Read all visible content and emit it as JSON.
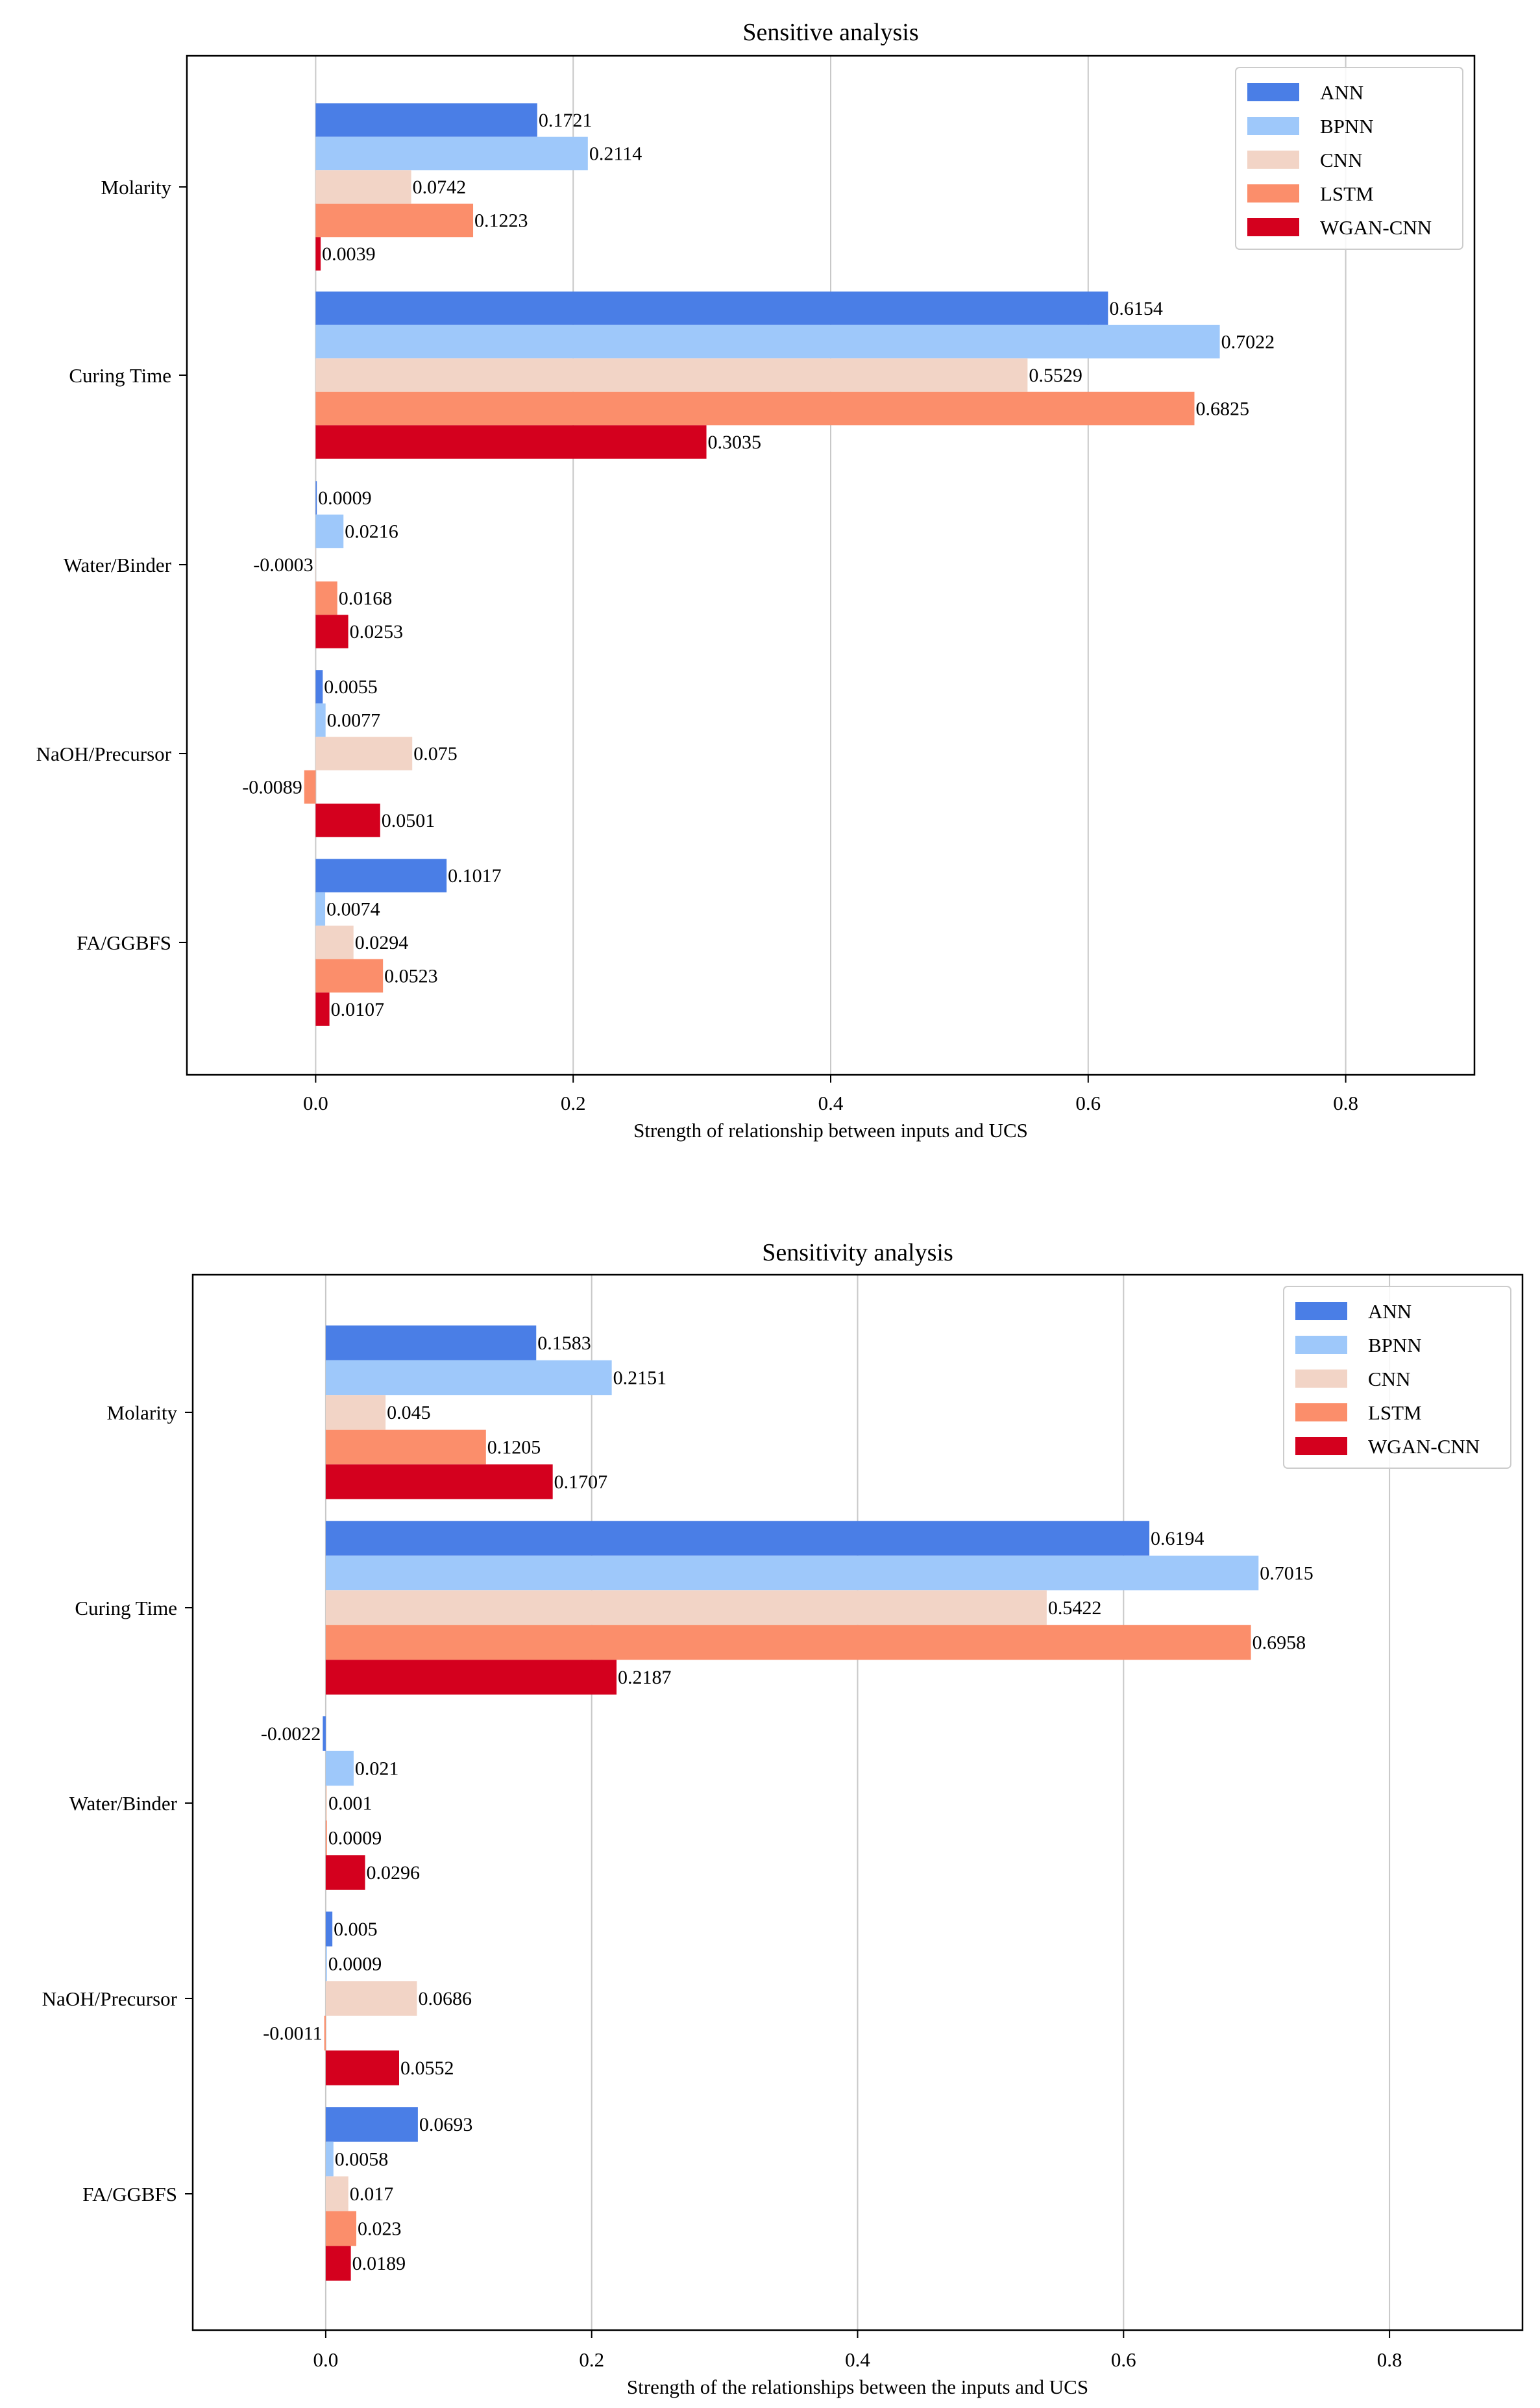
{
  "colors": {
    "ANN": "#4a7ee6",
    "BPNN": "#9ec8fa",
    "CNN": "#f2d4c6",
    "LSTM": "#fb8e6b",
    "WGAN-CNN": "#d4001e",
    "grid": "#c8c8c8",
    "axis": "#000000"
  },
  "chart_data": [
    {
      "type": "bar",
      "orientation": "horizontal",
      "title": "Sensitive analysis",
      "xlabel": "Strength of relationship between inputs and UCS",
      "ylabel": "",
      "xlim": [
        -0.1,
        0.9
      ],
      "xticks": [
        0.0,
        0.2,
        0.4,
        0.6,
        0.8
      ],
      "grid": "vertical",
      "legend_position": "top-right",
      "categories": [
        "Molarity",
        "Curing Time",
        "Water/Binder",
        "NaOH/Precursor",
        "FA/GGBFS"
      ],
      "series": [
        {
          "name": "ANN",
          "values": [
            0.1721,
            0.6154,
            0.0009,
            0.0055,
            0.1017
          ]
        },
        {
          "name": "BPNN",
          "values": [
            0.2114,
            0.7022,
            0.0216,
            0.0077,
            0.0074
          ]
        },
        {
          "name": "CNN",
          "values": [
            0.0742,
            0.5529,
            -0.0003,
            0.075,
            0.0294
          ]
        },
        {
          "name": "LSTM",
          "values": [
            0.1223,
            0.6825,
            0.0168,
            -0.0089,
            0.0523
          ]
        },
        {
          "name": "WGAN-CNN",
          "values": [
            0.0039,
            0.3035,
            0.0253,
            0.0501,
            0.0107
          ]
        }
      ],
      "labels": [
        [
          "0.1721",
          "0.6154",
          "0.0009",
          "0.0055",
          "0.1017"
        ],
        [
          "0.2114",
          "0.7022",
          "0.0216",
          "0.0077",
          "0.0074"
        ],
        [
          "0.0742",
          "0.5529",
          "-0.0003",
          "0.075",
          "0.0294"
        ],
        [
          "0.1223",
          "0.6825",
          "0.0168",
          "-0.0089",
          "0.0523"
        ],
        [
          "0.0039",
          "0.3035",
          "0.0253",
          "0.0501",
          "0.0107"
        ]
      ]
    },
    {
      "type": "bar",
      "orientation": "horizontal",
      "title": "Sensitivity analysis",
      "xlabel": "Strength of the relationships between the inputs and UCS",
      "ylabel": "",
      "xlim": [
        -0.1,
        0.9
      ],
      "xticks": [
        0.0,
        0.2,
        0.4,
        0.6,
        0.8
      ],
      "grid": "vertical",
      "legend_position": "top-right",
      "categories": [
        "Molarity",
        "Curing Time",
        "Water/Binder",
        "NaOH/Precursor",
        "FA/GGBFS"
      ],
      "series": [
        {
          "name": "ANN",
          "values": [
            0.1583,
            0.6194,
            -0.0022,
            0.005,
            0.0693
          ]
        },
        {
          "name": "BPNN",
          "values": [
            0.2151,
            0.7015,
            0.021,
            0.0009,
            0.0058
          ]
        },
        {
          "name": "CNN",
          "values": [
            0.045,
            0.5422,
            0.001,
            0.0686,
            0.017
          ]
        },
        {
          "name": "LSTM",
          "values": [
            0.1205,
            0.6958,
            0.0009,
            -0.0011,
            0.023
          ]
        },
        {
          "name": "WGAN-CNN",
          "values": [
            0.1707,
            0.2187,
            0.0296,
            0.0552,
            0.0189
          ]
        }
      ],
      "labels": [
        [
          "0.1583",
          "0.6194",
          "-0.0022",
          "0.005",
          "0.0693"
        ],
        [
          "0.2151",
          "0.7015",
          "0.021",
          "0.0009",
          "0.0058"
        ],
        [
          "0.045",
          "0.5422",
          "0.001",
          "0.0686",
          "0.017"
        ],
        [
          "0.1205",
          "0.6958",
          "0.0009",
          "-0.0011",
          "0.023"
        ],
        [
          "0.1707",
          "0.2187",
          "0.0296",
          "0.0552",
          "0.0189"
        ]
      ]
    }
  ]
}
